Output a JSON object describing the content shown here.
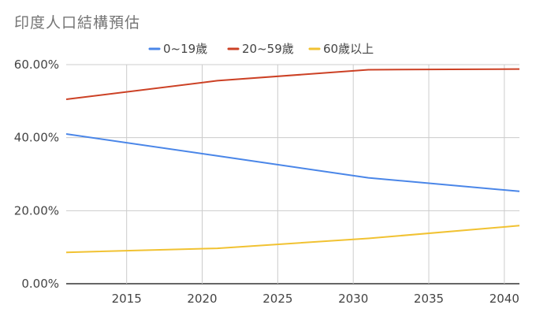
{
  "chart_data": {
    "type": "line",
    "title": "印度人口結構預估",
    "x": [
      2011,
      2021,
      2031,
      2041
    ],
    "series": [
      {
        "name": "0~19歲",
        "color": "#4a86e8",
        "values": [
          41.0,
          35.0,
          29.0,
          25.3
        ]
      },
      {
        "name": "20~59歲",
        "color": "#cc4125",
        "values": [
          50.5,
          55.6,
          58.6,
          58.8
        ]
      },
      {
        "name": "60歲以上",
        "color": "#f1c232",
        "values": [
          8.6,
          9.7,
          12.4,
          15.9
        ]
      }
    ],
    "xlim": [
      2011,
      2041
    ],
    "ylim": [
      0,
      60
    ],
    "xticks": [
      "2015",
      "2020",
      "2025",
      "2030",
      "2035",
      "2040"
    ],
    "yticks": [
      "0.00%",
      "20.00%",
      "40.00%",
      "60.00%"
    ],
    "grid": true,
    "legend": "top"
  }
}
